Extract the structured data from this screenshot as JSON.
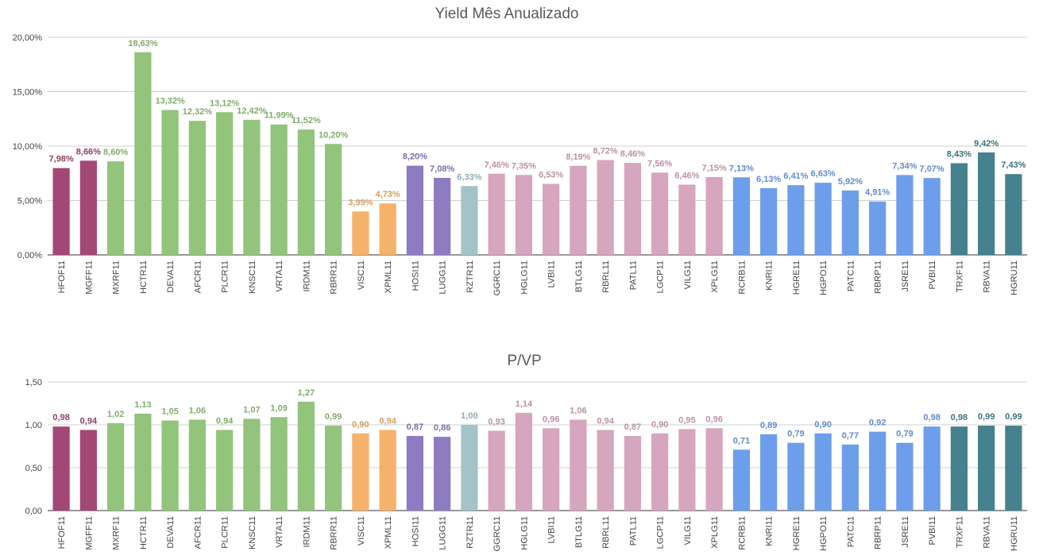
{
  "colors": {
    "HFOF11": "#a34874",
    "MGFF11": "#a34874",
    "MXRF11": "#92c47b",
    "HCTR11": "#92c47b",
    "DEVA11": "#92c47b",
    "AFCR11": "#92c47b",
    "PLCR11": "#92c47b",
    "KNSC11": "#92c47b",
    "VRTA11": "#92c47b",
    "IRDM11": "#92c47b",
    "RBRR11": "#92c47b",
    "VISC11": "#f5b26b",
    "XPML11": "#f5b26b",
    "HOSI11": "#8e7cc3",
    "LUGG11": "#8e7cc3",
    "RZTR11": "#a2c4c9",
    "GGRC11": "#d5a6bd",
    "HGLG11": "#d5a6bd",
    "LVBI11": "#d5a6bd",
    "BTLG11": "#d5a6bd",
    "RBRL11": "#d5a6bd",
    "PATL11": "#d5a6bd",
    "LGCP11": "#d5a6bd",
    "VILG11": "#d5a6bd",
    "XPLG11": "#d5a6bd",
    "RCRB11": "#6d9eeb",
    "KNRI11": "#6d9eeb",
    "HGRE11": "#6d9eeb",
    "HGPO11": "#6d9eeb",
    "PATC11": "#6d9eeb",
    "RBRP11": "#6d9eeb",
    "JSRE11": "#6d9eeb",
    "PVBI11": "#6d9eeb",
    "TRXF11": "#45818e",
    "RBVA11": "#45818e",
    "HGRU11": "#45818e"
  },
  "chart_data": [
    {
      "type": "bar",
      "title": "Yield Mês Anualizado",
      "xlabel": "",
      "ylabel": "",
      "ylim": [
        0,
        20
      ],
      "yticks": [
        0,
        5,
        10,
        15,
        20
      ],
      "ytick_labels": [
        "0,00%",
        "5,00%",
        "10,00%",
        "15,00%",
        "20,00%"
      ],
      "grid": true,
      "categories": [
        "HFOF11",
        "MGFF11",
        "MXRF11",
        "HCTR11",
        "DEVA11",
        "AFCR11",
        "PLCR11",
        "KNSC11",
        "VRTA11",
        "IRDM11",
        "RBRR11",
        "VISC11",
        "XPML11",
        "HOSI11",
        "LUGG11",
        "RZTR11",
        "GGRC11",
        "HGLG11",
        "LVBI11",
        "BTLG11",
        "RBRL11",
        "PATL11",
        "LGCP11",
        "VILG11",
        "XPLG11",
        "RCRB11",
        "KNRI11",
        "HGRE11",
        "HGPO11",
        "PATC11",
        "RBRP11",
        "JSRE11",
        "PVBI11",
        "TRXF11",
        "RBVA11",
        "HGRU11"
      ],
      "values": [
        7.98,
        8.66,
        8.6,
        18.63,
        13.32,
        12.32,
        13.12,
        12.42,
        11.99,
        11.52,
        10.2,
        3.99,
        4.73,
        8.2,
        7.08,
        6.33,
        7.46,
        7.35,
        6.53,
        8.19,
        8.72,
        8.46,
        7.56,
        6.46,
        7.15,
        7.13,
        6.13,
        6.41,
        6.63,
        5.92,
        4.91,
        7.34,
        7.07,
        8.43,
        9.42,
        7.43
      ],
      "labels": [
        "7,98%",
        "8,66%",
        "8,60%",
        "18,63%",
        "13,32%",
        "12,32%",
        "13,12%",
        "12,42%",
        "11,99%",
        "11,52%",
        "10,20%",
        "3,99%",
        "4,73%",
        "8,20%",
        "7,08%",
        "6,33%",
        "7,46%",
        "7,35%",
        "6,53%",
        "8,19%",
        "8,72%",
        "8,46%",
        "7,56%",
        "6,46%",
        "7,15%",
        "7,13%",
        "6,13%",
        "6,41%",
        "6,63%",
        "5,92%",
        "4,91%",
        "7,34%",
        "7,07%",
        "8,43%",
        "9,42%",
        "7,43%"
      ]
    },
    {
      "type": "bar",
      "title": "P/VP",
      "xlabel": "",
      "ylabel": "",
      "ylim": [
        0,
        1.5
      ],
      "yticks": [
        0,
        0.5,
        1,
        1.5
      ],
      "ytick_labels": [
        "0,00",
        "0,50",
        "1,00",
        "1,50"
      ],
      "grid": true,
      "categories": [
        "HFOF11",
        "MGFF11",
        "MXRF11",
        "HCTR11",
        "DEVA11",
        "AFCR11",
        "PLCR11",
        "KNSC11",
        "VRTA11",
        "IRDM11",
        "RBRR11",
        "VISC11",
        "XPML11",
        "HOSI11",
        "LUGG11",
        "RZTR11",
        "GGRC11",
        "HGLG11",
        "LVBI11",
        "BTLG11",
        "RBRL11",
        "PATL11",
        "LGCP11",
        "VILG11",
        "XPLG11",
        "RCRB11",
        "KNRI11",
        "HGRE11",
        "HGPO11",
        "PATC11",
        "RBRP11",
        "JSRE11",
        "PVBI11",
        "TRXF11",
        "RBVA11",
        "HGRU11"
      ],
      "values": [
        0.98,
        0.94,
        1.02,
        1.13,
        1.05,
        1.06,
        0.94,
        1.07,
        1.09,
        1.27,
        0.99,
        0.9,
        0.94,
        0.87,
        0.86,
        1.0,
        0.93,
        1.14,
        0.96,
        1.06,
        0.94,
        0.87,
        0.9,
        0.95,
        0.96,
        0.71,
        0.89,
        0.79,
        0.9,
        0.77,
        0.92,
        0.79,
        0.98,
        0.98,
        0.99,
        0.99
      ],
      "labels": [
        "0,98",
        "0,94",
        "1,02",
        "1,13",
        "1,05",
        "1,06",
        "0,94",
        "1,07",
        "1,09",
        "1,27",
        "0,99",
        "0,90",
        "0,94",
        "0,87",
        "0,86",
        "1,00",
        "0,93",
        "1,14",
        "0,96",
        "1,06",
        "0,94",
        "0,87",
        "0,90",
        "0,95",
        "0,96",
        "0,71",
        "0,89",
        "0,79",
        "0,90",
        "0,77",
        "0,92",
        "0,79",
        "0,98",
        "0,98",
        "0,99",
        "0,99"
      ]
    }
  ]
}
